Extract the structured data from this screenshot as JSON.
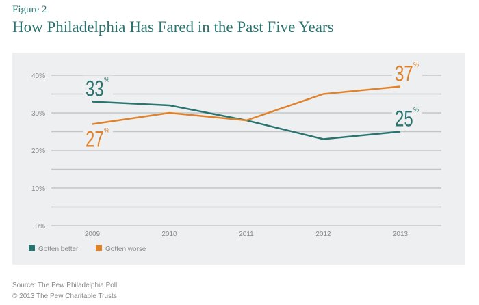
{
  "figure_label": "Figure 2",
  "chart_data": {
    "type": "line",
    "title": "How Philadelphia Has Fared in the Past Five Years",
    "categories": [
      "2009",
      "2010",
      "2011",
      "2012",
      "2013"
    ],
    "ylim": [
      0,
      40
    ],
    "yticks": [
      "0%",
      "10%",
      "20%",
      "30%",
      "40%"
    ],
    "grid": true,
    "legend_placement": "bottom-left",
    "series": [
      {
        "name": "Gotten better",
        "color": "#2a7470",
        "values": [
          33,
          32,
          28,
          23,
          25
        ],
        "callouts": [
          {
            "index": 0,
            "text": "33",
            "unit": "%"
          },
          {
            "index": 4,
            "text": "25",
            "unit": "%"
          }
        ]
      },
      {
        "name": "Gotten worse",
        "color": "#e0822a",
        "values": [
          27,
          30,
          28,
          35,
          37
        ],
        "callouts": [
          {
            "index": 0,
            "text": "27",
            "unit": "%"
          },
          {
            "index": 4,
            "text": "37",
            "unit": "%"
          }
        ]
      }
    ]
  },
  "source": "Source: The Pew Philadelphia Poll",
  "copyright": "© 2013 The Pew Charitable Trusts"
}
